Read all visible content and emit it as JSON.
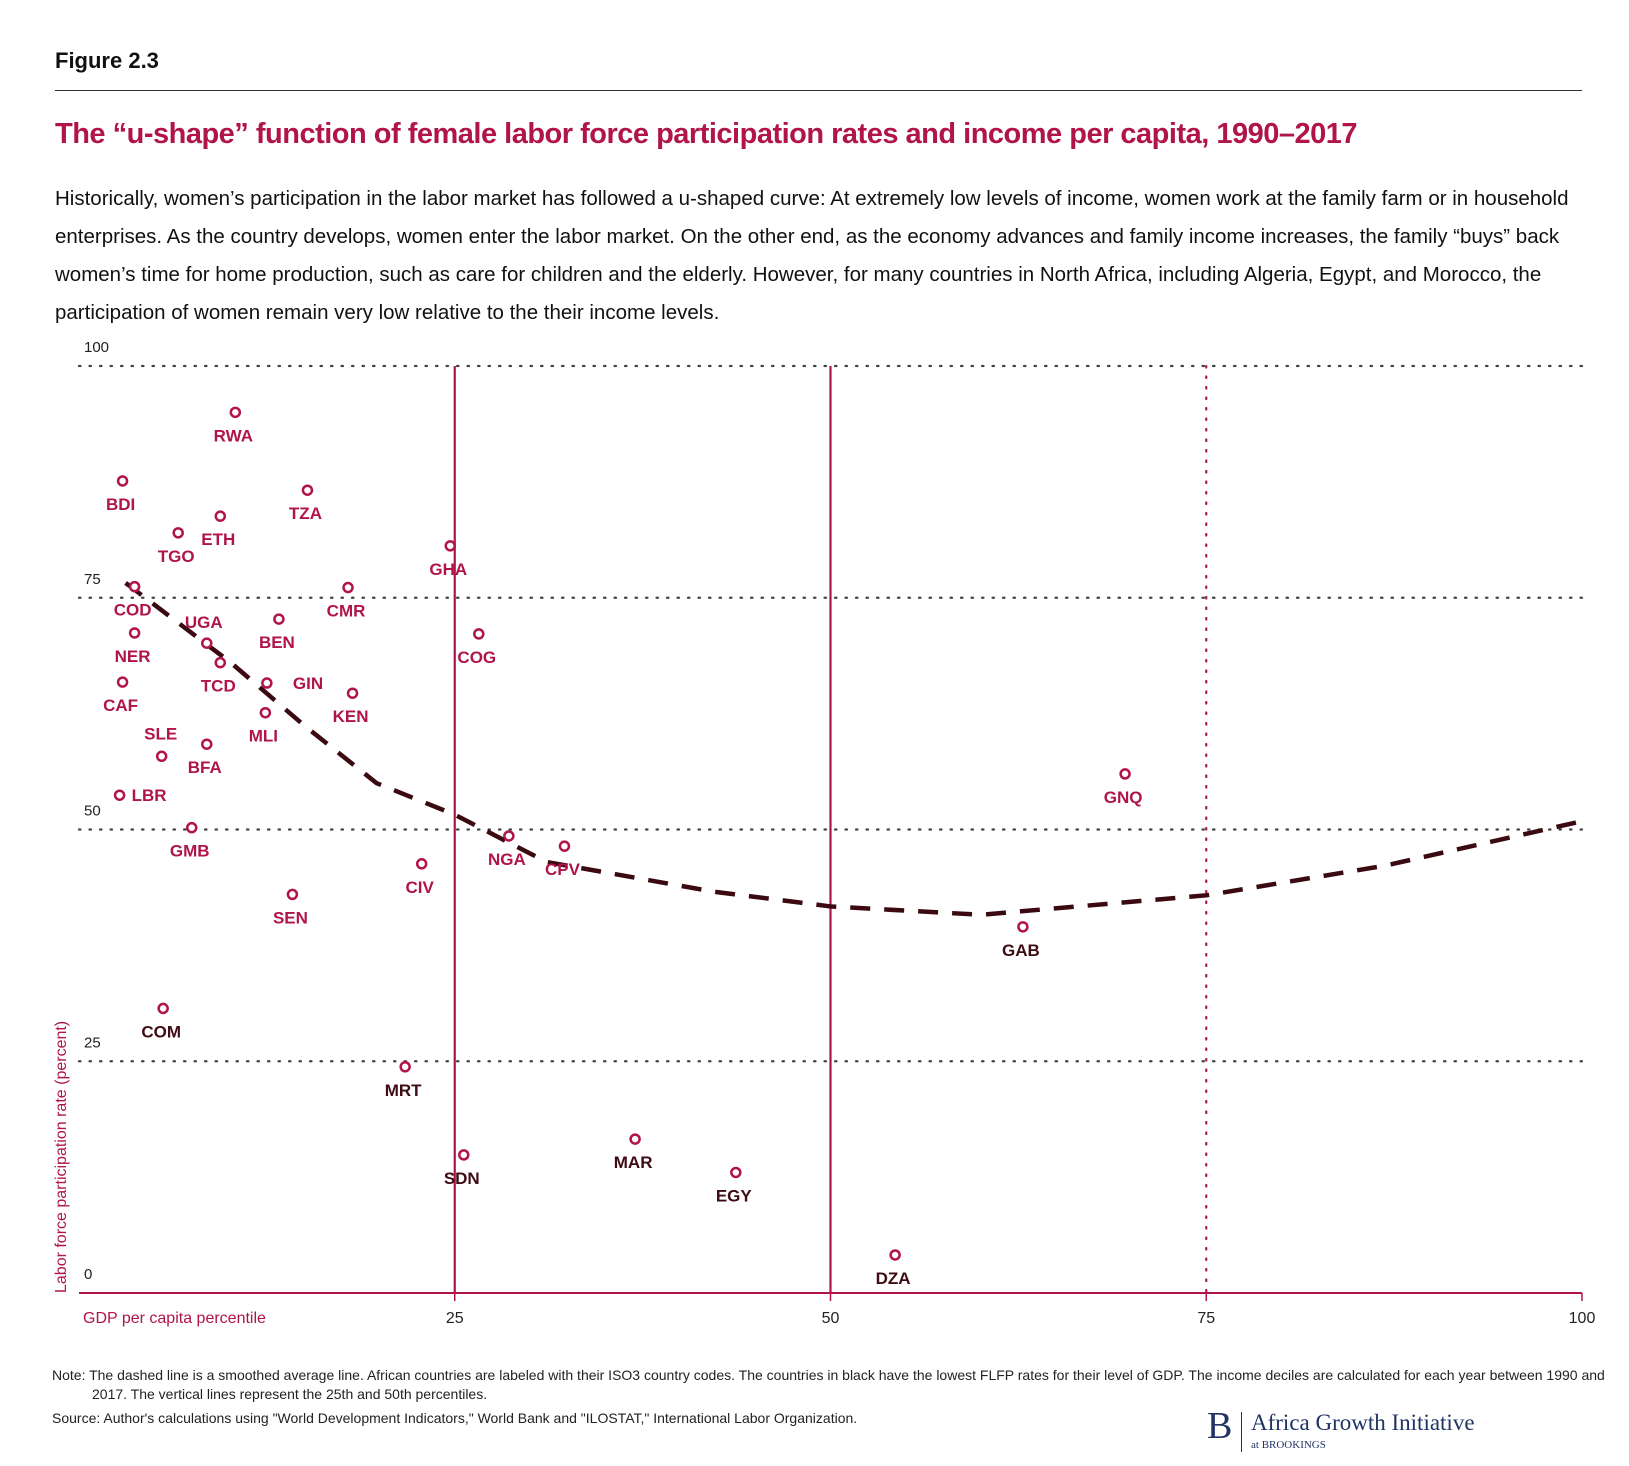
{
  "figure_label": "Figure 2.3",
  "chart_data": {
    "type": "scatter",
    "title": "The “u-shape” function of female labor force participation rates and income per capita, 1990–2017",
    "subtitle": "Historically, women’s participation in the labor market has followed a u-shaped curve: At extremely low levels of income, women work at the family farm or in household enterprises. As the country develops, women enter the labor market. On the other end, as the economy advances and family income increases, the family “buys” back women’s time for home production, such as care for children and the elderly. However, for many countries in North Africa, including Algeria, Egypt, and Morocco, the participation of women remain very low relative to the their income levels.",
    "x_label": "GDP per capita percentile",
    "y_label": "Labor force participation rate (percent)",
    "xlim": [
      0,
      100
    ],
    "xticks": [
      25,
      50,
      75,
      100
    ],
    "ylim": [
      0,
      100
    ],
    "yticks": [
      0,
      25,
      50,
      75,
      100
    ],
    "grid": true,
    "marker_color": "#b0144a",
    "series": [
      {
        "color": "#b0144a",
        "labels": [
          "RWA",
          "BDI",
          "TZA",
          "ETH",
          "TGO",
          "GHA",
          "COD",
          "CMR",
          "BEN",
          "NER",
          "COG",
          "UGA",
          "TCD",
          "CAF",
          "GIN",
          "KEN",
          "MLI",
          "BFA",
          "SLE",
          "GNQ",
          "LBR",
          "GMB",
          "NGA",
          "CPV",
          "CIV",
          "SEN"
        ],
        "x": [
          10.4,
          2.9,
          15.2,
          9.4,
          6.6,
          24.7,
          3.7,
          17.9,
          13.3,
          3.7,
          26.6,
          8.5,
          9.4,
          2.9,
          12.5,
          18.2,
          12.4,
          8.5,
          5.5,
          69.6,
          2.7,
          7.5,
          28.6,
          32.3,
          22.8,
          14.2
        ],
        "y": [
          95.0,
          87.6,
          86.6,
          83.8,
          82.0,
          80.6,
          76.2,
          76.1,
          72.7,
          71.2,
          71.1,
          70.1,
          68.0,
          65.9,
          65.8,
          64.7,
          62.6,
          59.2,
          57.9,
          56.0,
          53.7,
          50.2,
          49.3,
          48.2,
          46.3,
          43.0
        ]
      },
      {
        "color": "#3d0c14",
        "labels": [
          "GAB",
          "COM",
          "MRT",
          "SDN",
          "MAR",
          "EGY",
          "DZA"
        ],
        "x": [
          62.8,
          5.6,
          21.7,
          25.6,
          37.0,
          43.7,
          54.3
        ],
        "y": [
          39.5,
          30.7,
          24.4,
          14.9,
          16.6,
          13.0,
          4.1
        ]
      }
    ],
    "trend": {
      "color": "#3a0a10",
      "x": [
        3.1,
        10.1,
        15.0,
        19.8,
        25,
        31.1,
        42.2,
        50,
        60,
        75,
        86.9,
        100
      ],
      "y": [
        76.6,
        68.0,
        61.2,
        55.0,
        51.6,
        46.5,
        43.3,
        41.7,
        40.8,
        42.9,
        46.1,
        50.9
      ]
    },
    "vlines": [
      {
        "value": 25,
        "style": "solid"
      },
      {
        "value": 50,
        "style": "solid"
      },
      {
        "value": 75,
        "style": "dotted"
      }
    ]
  },
  "note": "Note: The dashed line is a smoothed average line. African countries are labeled with their ISO3 country codes. The countries in black have the lowest FLFP rates for their level of GDP. The income deciles are calculated for each year between 1990 and 2017. The vertical lines represent the 25th and 50th percentiles.",
  "source": "Source: Author's calculations using \"World Development Indicators,\" World Bank and  \"ILOSTAT,\" International Labor Organization.",
  "logo": {
    "letter": "B",
    "name": "Africa Growth Initiative",
    "sub": "at BROOKINGS"
  }
}
